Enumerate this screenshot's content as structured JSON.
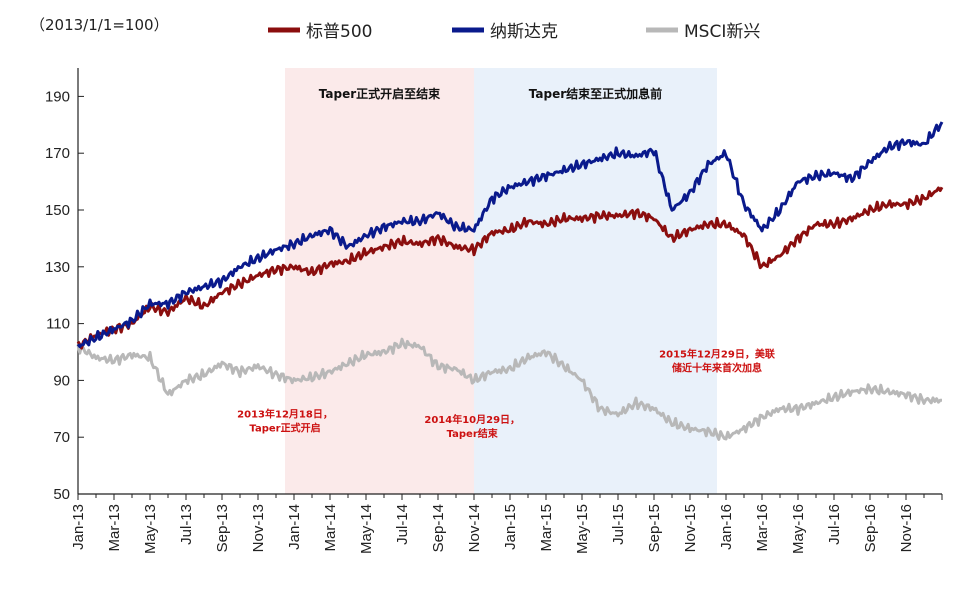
{
  "chart_data": {
    "type": "line",
    "unit_label": "（2013/1/1=100）",
    "ylim": [
      50,
      200
    ],
    "yticks": [
      50,
      70,
      90,
      110,
      130,
      150,
      170,
      190
    ],
    "x_start": "2013-01",
    "x_end": "2016-12",
    "xticks": [
      "Jan-13",
      "Mar-13",
      "May-13",
      "Jul-13",
      "Sep-13",
      "Nov-13",
      "Jan-14",
      "Mar-14",
      "May-14",
      "Jul-14",
      "Sep-14",
      "Nov-14",
      "Jan-15",
      "Mar-15",
      "May-15",
      "Jul-15",
      "Sep-15",
      "Nov-15",
      "Jan-16",
      "Mar-16",
      "May-16",
      "Jul-16",
      "Sep-16",
      "Nov-16"
    ],
    "grid": false,
    "legend_position": "top",
    "x_months": [
      0,
      1,
      2,
      3,
      4,
      5,
      6,
      7,
      8,
      9,
      10,
      11,
      12,
      13,
      14,
      15,
      16,
      17,
      18,
      19,
      20,
      21,
      22,
      23,
      24,
      25,
      26,
      27,
      28,
      29,
      30,
      31,
      32,
      33,
      34,
      35,
      36,
      37,
      38,
      39,
      40,
      41,
      42,
      43,
      44,
      45,
      46,
      47,
      48
    ],
    "series": [
      {
        "name": "标普500",
        "color": "#8b0e0e",
        "values": [
          102,
          106,
          108,
          110,
          116,
          114,
          119,
          116,
          121,
          124,
          127,
          129,
          130,
          128,
          131,
          132,
          135,
          137,
          139,
          138,
          140,
          137,
          136,
          142,
          143,
          146,
          145,
          147,
          147,
          148,
          148,
          149,
          147,
          140,
          143,
          145,
          145,
          141,
          130,
          134,
          140,
          145,
          145,
          147,
          150,
          152,
          152,
          154,
          158
        ]
      },
      {
        "name": "纳斯达克",
        "color": "#0a1a8c",
        "values": [
          102,
          105,
          108,
          111,
          117,
          117,
          121,
          123,
          125,
          130,
          133,
          136,
          138,
          141,
          143,
          137,
          141,
          144,
          146,
          146,
          149,
          144,
          143,
          154,
          158,
          160,
          162,
          164,
          166,
          168,
          170,
          169,
          171,
          150,
          156,
          166,
          170,
          152,
          143,
          150,
          160,
          162,
          163,
          161,
          167,
          172,
          174,
          173,
          181
        ]
      },
      {
        "name": "MSCI新兴",
        "color": "#b8b8b8",
        "values": [
          102,
          98,
          97,
          99,
          98,
          85,
          90,
          92,
          96,
          93,
          95,
          92,
          90,
          91,
          93,
          96,
          99,
          100,
          103,
          102,
          95,
          94,
          90,
          93,
          94,
          98,
          100,
          95,
          90,
          80,
          78,
          82,
          80,
          75,
          73,
          72,
          70,
          73,
          77,
          80,
          80,
          82,
          84,
          86,
          87,
          86,
          85,
          83,
          83
        ]
      }
    ],
    "bands": [
      {
        "label": "Taper正式开启至结束",
        "start": 11.5,
        "end": 22,
        "color": "#fbeaea"
      },
      {
        "label": "Taper结束至正式加息前",
        "start": 22,
        "end": 35.5,
        "color": "#e9f1fa"
      }
    ],
    "annotations": [
      {
        "id": "a1",
        "lines": [
          "2013年12月18日，",
          "Taper正式开启"
        ],
        "x": 11.5,
        "y": 77
      },
      {
        "id": "a2",
        "lines": [
          "2014年10月29日，",
          "Taper结束"
        ],
        "x": 21.9,
        "y": 75
      },
      {
        "id": "a3",
        "lines": [
          "2015年12月29日，美联",
          "储近十年来首次加息"
        ],
        "x": 35.5,
        "y": 98
      }
    ]
  }
}
